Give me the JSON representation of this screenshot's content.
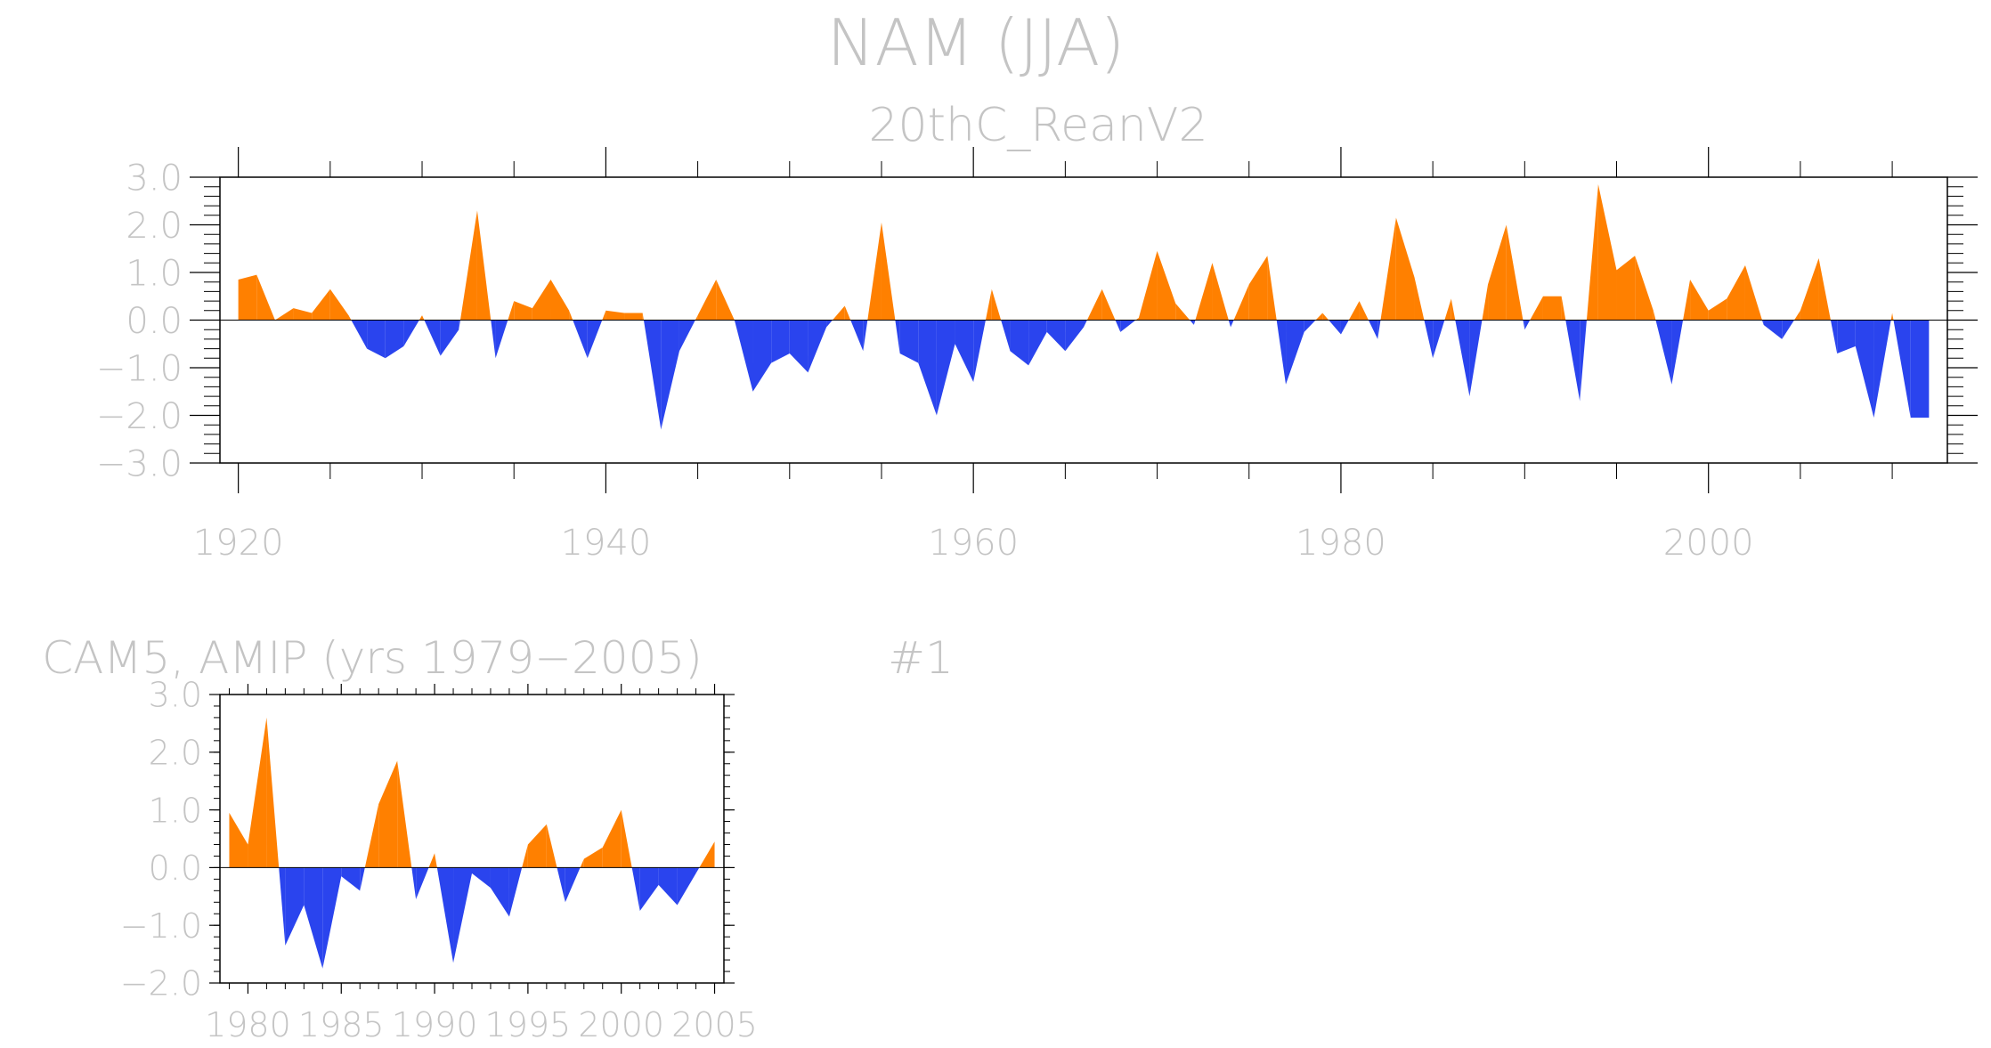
{
  "page": {
    "title": "NAM (JJA)",
    "colors": {
      "positive": "#ff8000",
      "negative": "#2a44ee",
      "axis": "#000000",
      "text": "#c4c4c4"
    }
  },
  "chart_data": [
    {
      "type": "area",
      "title": "20thC_ReanV2",
      "xlabel": "",
      "ylabel": "",
      "xlim": [
        1919,
        2013
      ],
      "ylim": [
        -3.0,
        3.0
      ],
      "x_ticks": [
        1920,
        1940,
        1960,
        1980,
        2000
      ],
      "x_tick_labels": [
        "1920",
        "1940",
        "1960",
        "1980",
        "2000"
      ],
      "y_ticks": [
        -3,
        -2,
        -1,
        0,
        1,
        2,
        3
      ],
      "y_tick_labels": [
        "−3.0",
        "−2.0",
        "−1.0",
        "0.0",
        "1.0",
        "2.0",
        "3.0"
      ],
      "x": [
        1920,
        1921,
        1922,
        1923,
        1924,
        1925,
        1926,
        1927,
        1928,
        1929,
        1930,
        1931,
        1932,
        1933,
        1934,
        1935,
        1936,
        1937,
        1938,
        1939,
        1940,
        1941,
        1942,
        1943,
        1944,
        1945,
        1946,
        1947,
        1948,
        1949,
        1950,
        1951,
        1952,
        1953,
        1954,
        1955,
        1956,
        1957,
        1958,
        1959,
        1960,
        1961,
        1962,
        1963,
        1964,
        1965,
        1966,
        1967,
        1968,
        1969,
        1970,
        1971,
        1972,
        1973,
        1974,
        1975,
        1976,
        1977,
        1978,
        1979,
        1980,
        1981,
        1982,
        1983,
        1984,
        1985,
        1986,
        1987,
        1988,
        1989,
        1990,
        1991,
        1992,
        1993,
        1994,
        1995,
        1996,
        1997,
        1998,
        1999,
        2000,
        2001,
        2002,
        2003,
        2004,
        2005,
        2006,
        2007,
        2008,
        2009,
        2010,
        2011,
        2012
      ],
      "values": [
        0.85,
        0.95,
        0.0,
        0.25,
        0.15,
        0.65,
        0.1,
        -0.6,
        -0.8,
        -0.55,
        0.1,
        -0.75,
        -0.2,
        2.3,
        -0.8,
        0.4,
        0.25,
        0.85,
        0.2,
        -0.8,
        0.2,
        0.15,
        0.15,
        -2.3,
        -0.65,
        0.1,
        0.85,
        0.0,
        -1.5,
        -0.9,
        -0.7,
        -1.1,
        -0.15,
        0.3,
        -0.65,
        2.05,
        -0.7,
        -0.9,
        -2.0,
        -0.5,
        -1.3,
        0.65,
        -0.65,
        -0.95,
        -0.25,
        -0.65,
        -0.15,
        0.65,
        -0.25,
        0.05,
        1.45,
        0.35,
        -0.1,
        1.2,
        -0.15,
        0.75,
        1.35,
        -1.35,
        -0.25,
        0.15,
        -0.3,
        0.4,
        -0.4,
        2.15,
        0.9,
        -0.8,
        0.45,
        -1.6,
        0.75,
        2.0,
        -0.2,
        0.5,
        0.5,
        -1.7,
        2.85,
        1.05,
        1.35,
        0.2,
        -1.35,
        0.85,
        0.2,
        0.45,
        1.15,
        -0.1,
        -0.4,
        0.2,
        1.3,
        -0.7,
        -0.55,
        -2.05,
        0.15,
        -2.05,
        -2.05
      ]
    },
    {
      "type": "area",
      "title": "CAM5, AMIP (yrs 1979−2005)",
      "member_label": "#1",
      "xlabel": "",
      "ylabel": "",
      "xlim": [
        1978.5,
        2005.5
      ],
      "ylim": [
        -2.0,
        3.0
      ],
      "x_ticks": [
        1980,
        1985,
        1990,
        1995,
        2000,
        2005
      ],
      "x_tick_labels": [
        "1980",
        "1985",
        "1990",
        "1995",
        "2000",
        "2005"
      ],
      "y_ticks": [
        -2,
        -1,
        0,
        1,
        2,
        3
      ],
      "y_tick_labels": [
        "−2.0",
        "−1.0",
        "0.0",
        "1.0",
        "2.0",
        "3.0"
      ],
      "x": [
        1979,
        1980,
        1981,
        1982,
        1983,
        1984,
        1985,
        1986,
        1987,
        1988,
        1989,
        1990,
        1991,
        1992,
        1993,
        1994,
        1995,
        1996,
        1997,
        1998,
        1999,
        2000,
        2001,
        2002,
        2003,
        2004,
        2005
      ],
      "values": [
        0.95,
        0.4,
        2.6,
        -1.35,
        -0.65,
        -1.75,
        -0.15,
        -0.4,
        1.1,
        1.85,
        -0.55,
        0.25,
        -1.65,
        -0.1,
        -0.35,
        -0.85,
        0.4,
        0.75,
        -0.6,
        0.15,
        0.35,
        1.0,
        -0.75,
        -0.3,
        -0.65,
        -0.1,
        0.45
      ]
    }
  ]
}
